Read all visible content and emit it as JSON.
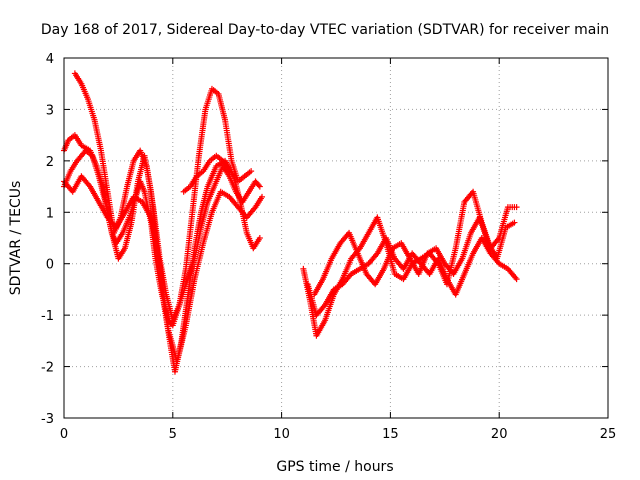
{
  "chart_data": {
    "type": "scatter",
    "title": "Day 168 of 2017, Sidereal Day-to-day VTEC variation (SDTVAR) for receiver main",
    "xlabel": "GPS time / hours",
    "ylabel": "SDTVAR / TECUs",
    "xlim": [
      0,
      25
    ],
    "ylim": [
      -3,
      4
    ],
    "x_ticks": [
      0,
      5,
      10,
      15,
      20,
      25
    ],
    "y_ticks": [
      -3,
      -2,
      -1,
      0,
      1,
      2,
      3,
      4
    ],
    "x_tick_labels": [
      "0",
      "5",
      "10",
      "15",
      "20",
      "25"
    ],
    "y_tick_labels": [
      "-3",
      "-2",
      "-1",
      "0",
      "1",
      "2",
      "3",
      "4"
    ],
    "grid": true,
    "marker": "+",
    "colors": {
      "series": "#ff0000",
      "grid": "#a0a0a0",
      "axis": "#000000"
    },
    "series": [
      {
        "x": [
          0.0,
          0.2,
          0.5,
          0.8,
          1.2,
          1.5,
          1.8,
          2.0,
          2.2,
          2.4,
          2.7,
          3.0,
          3.3,
          3.5,
          3.7,
          4.0,
          4.2,
          4.5,
          4.8,
          5.0,
          5.3,
          5.6,
          6.0,
          6.3,
          6.6,
          7.0,
          7.3,
          7.6,
          7.9,
          8.2,
          8.5,
          8.8,
          9.0
        ],
        "y": [
          2.2,
          2.4,
          2.5,
          2.3,
          2.2,
          1.9,
          1.5,
          1.0,
          0.6,
          0.4,
          0.6,
          0.9,
          1.3,
          1.6,
          1.4,
          0.8,
          0.1,
          -0.6,
          -1.1,
          -1.2,
          -0.8,
          -0.4,
          0.1,
          0.7,
          1.2,
          1.6,
          1.9,
          1.7,
          1.4,
          1.2,
          1.4,
          1.6,
          1.5
        ]
      },
      {
        "x": [
          0.0,
          0.3,
          0.6,
          1.0,
          1.3,
          1.6,
          1.9,
          2.2,
          2.5,
          2.8,
          3.1,
          3.4,
          3.7,
          4.0,
          4.3,
          4.6,
          4.9,
          5.1,
          5.4,
          5.7,
          6.0,
          6.3,
          6.6,
          7.0,
          7.4,
          7.8,
          8.1,
          8.4,
          8.7,
          9.0
        ],
        "y": [
          1.5,
          1.8,
          2.0,
          2.2,
          2.1,
          1.7,
          1.2,
          0.6,
          0.1,
          0.3,
          0.8,
          1.6,
          2.1,
          1.4,
          0.2,
          -0.8,
          -1.6,
          -2.1,
          -1.5,
          -0.6,
          0.3,
          1.0,
          1.5,
          1.9,
          2.0,
          1.7,
          1.2,
          0.6,
          0.3,
          0.5
        ]
      },
      {
        "x": [
          0.5,
          0.8,
          1.1,
          1.4,
          1.7,
          2.0,
          2.3,
          2.6,
          2.9,
          3.2,
          3.5,
          3.8,
          4.1,
          4.4,
          4.7,
          5.0,
          5.3,
          5.6,
          5.9,
          6.2,
          6.5,
          6.8,
          7.1,
          7.4,
          7.7,
          8.0,
          8.3,
          8.6
        ],
        "y": [
          3.7,
          3.5,
          3.2,
          2.8,
          2.2,
          1.4,
          0.6,
          0.9,
          1.5,
          2.0,
          2.2,
          1.9,
          1.1,
          0.1,
          -0.6,
          -1.1,
          -0.8,
          -0.1,
          1.0,
          2.1,
          3.0,
          3.4,
          3.3,
          2.8,
          2.0,
          1.6,
          1.7,
          1.8
        ]
      },
      {
        "x": [
          0.0,
          0.4,
          0.8,
          1.2,
          1.6,
          2.0,
          2.4,
          2.8,
          3.2,
          3.6,
          4.0,
          4.4,
          4.8,
          5.2,
          5.6,
          6.0,
          6.4,
          6.8,
          7.2,
          7.6,
          8.0,
          8.4,
          8.8,
          9.1
        ],
        "y": [
          1.6,
          1.4,
          1.7,
          1.5,
          1.2,
          0.9,
          0.7,
          1.0,
          1.3,
          1.2,
          0.9,
          0.0,
          -1.3,
          -1.9,
          -1.2,
          -0.3,
          0.4,
          1.0,
          1.4,
          1.3,
          1.1,
          0.9,
          1.1,
          1.3
        ]
      },
      {
        "x": [
          5.5,
          5.8,
          6.1,
          6.4,
          6.7,
          7.0,
          7.3,
          7.6
        ],
        "y": [
          1.4,
          1.5,
          1.7,
          1.8,
          2.0,
          2.1,
          2.0,
          1.8
        ]
      },
      {
        "x": [
          11.0,
          11.3,
          11.6,
          12.0,
          12.4,
          12.8,
          13.2,
          13.6,
          14.0,
          14.4,
          14.8,
          15.2,
          15.6,
          16.0,
          16.4,
          16.8,
          17.2,
          17.6,
          18.0,
          18.4,
          18.8,
          19.2,
          19.6,
          20.0,
          20.4,
          20.8
        ],
        "y": [
          -0.1,
          -0.7,
          -1.4,
          -1.1,
          -0.6,
          -0.3,
          0.1,
          0.3,
          0.6,
          0.9,
          0.4,
          -0.2,
          -0.3,
          0.0,
          0.1,
          0.2,
          0.0,
          -0.4,
          0.3,
          1.2,
          1.4,
          0.8,
          0.3,
          0.5,
          1.1,
          1.1
        ]
      },
      {
        "x": [
          11.2,
          11.6,
          12.0,
          12.4,
          12.8,
          13.2,
          13.6,
          14.0,
          14.4,
          14.8,
          15.2,
          15.6,
          16.0,
          16.4,
          16.8,
          17.2,
          17.6,
          18.0,
          18.4,
          18.8,
          19.2,
          19.6,
          20.0,
          20.4,
          20.8
        ],
        "y": [
          -0.4,
          -1.0,
          -0.8,
          -0.5,
          -0.4,
          -0.2,
          -0.1,
          0.0,
          0.2,
          0.5,
          0.1,
          -0.1,
          0.2,
          0.0,
          -0.2,
          0.1,
          -0.3,
          -0.6,
          -0.2,
          0.2,
          0.5,
          0.2,
          0.0,
          -0.1,
          -0.3
        ]
      },
      {
        "x": [
          11.5,
          11.9,
          12.3,
          12.7,
          13.1,
          13.5,
          13.9,
          14.3,
          14.7,
          15.1,
          15.5,
          15.9,
          16.3,
          16.7,
          17.1,
          17.5,
          17.9,
          18.3,
          18.7,
          19.1,
          19.5,
          19.9,
          20.3,
          20.7
        ],
        "y": [
          -0.6,
          -0.3,
          0.1,
          0.4,
          0.6,
          0.2,
          -0.2,
          -0.4,
          -0.1,
          0.3,
          0.4,
          0.1,
          -0.2,
          0.2,
          0.3,
          0.0,
          -0.2,
          0.1,
          0.6,
          0.9,
          0.4,
          0.1,
          0.7,
          0.8
        ]
      }
    ]
  }
}
